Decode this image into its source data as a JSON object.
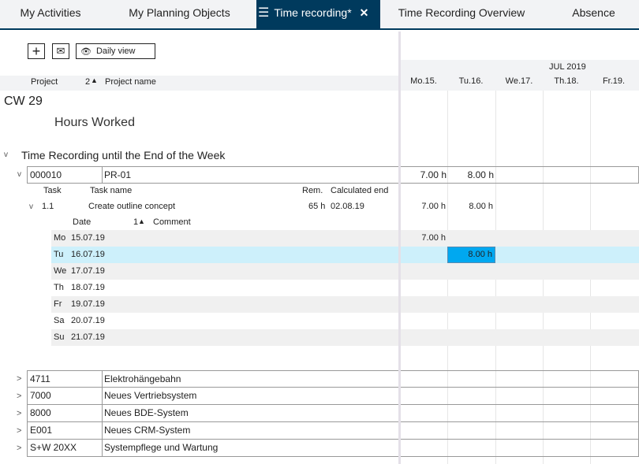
{
  "tabs": [
    {
      "label": "My Activities"
    },
    {
      "label": "My Planning Objects"
    },
    {
      "label": "Time recording*",
      "active": true
    },
    {
      "label": "Time Recording Overview"
    },
    {
      "label": "Absence"
    }
  ],
  "toolbar": {
    "daily_view_label": "Daily view"
  },
  "columns": {
    "project": "Project",
    "sort_index": "2",
    "project_name": "Project name"
  },
  "calendar": {
    "month": "JUL 2019",
    "days": [
      "Mo.15.",
      "Tu.16.",
      "We.17.",
      "Th.18.",
      "Fr.19."
    ]
  },
  "week_label": "CW 29",
  "hours_worked_label": "Hours Worked",
  "section_label": "Time Recording until the End of the Week",
  "expanded_project": {
    "number": "000010",
    "name": "PR-01",
    "hours": [
      "7.00 h",
      "8.00 h"
    ],
    "task_headers": {
      "task": "Task",
      "task_name": "Task name",
      "rem": "Rem.",
      "calc_end": "Calculated end"
    },
    "task": {
      "id": "1.1",
      "name": "Create outline concept",
      "rem": "65 h",
      "calc_end": "02.08.19",
      "hours": [
        "7.00 h",
        "8.00 h"
      ]
    },
    "day_headers": {
      "date": "Date",
      "sort_index": "1",
      "comment": "Comment"
    },
    "days": [
      {
        "wd": "Mo",
        "date": "15.07.19",
        "hours": "7.00 h"
      },
      {
        "wd": "Tu",
        "date": "16.07.19",
        "hours": "8.00 h",
        "selected": true
      },
      {
        "wd": "We",
        "date": "17.07.19"
      },
      {
        "wd": "Th",
        "date": "18.07.19"
      },
      {
        "wd": "Fr",
        "date": "19.07.19"
      },
      {
        "wd": "Sa",
        "date": "20.07.19"
      },
      {
        "wd": "Su",
        "date": "21.07.19"
      }
    ]
  },
  "projects": [
    {
      "number": "4711",
      "name": "Elektrohängebahn"
    },
    {
      "number": "7000",
      "name": "Neues Vertriebsystem"
    },
    {
      "number": "8000",
      "name": "Neues BDE-System"
    },
    {
      "number": "E001",
      "name": "Neues CRM-System"
    },
    {
      "number": "S+W 20XX",
      "name": "Systempflege und Wartung"
    }
  ],
  "colors": {
    "active_tab": "#003a5d",
    "selected_row": "#cdf0fb",
    "selected_cell": "#00a8f0"
  }
}
